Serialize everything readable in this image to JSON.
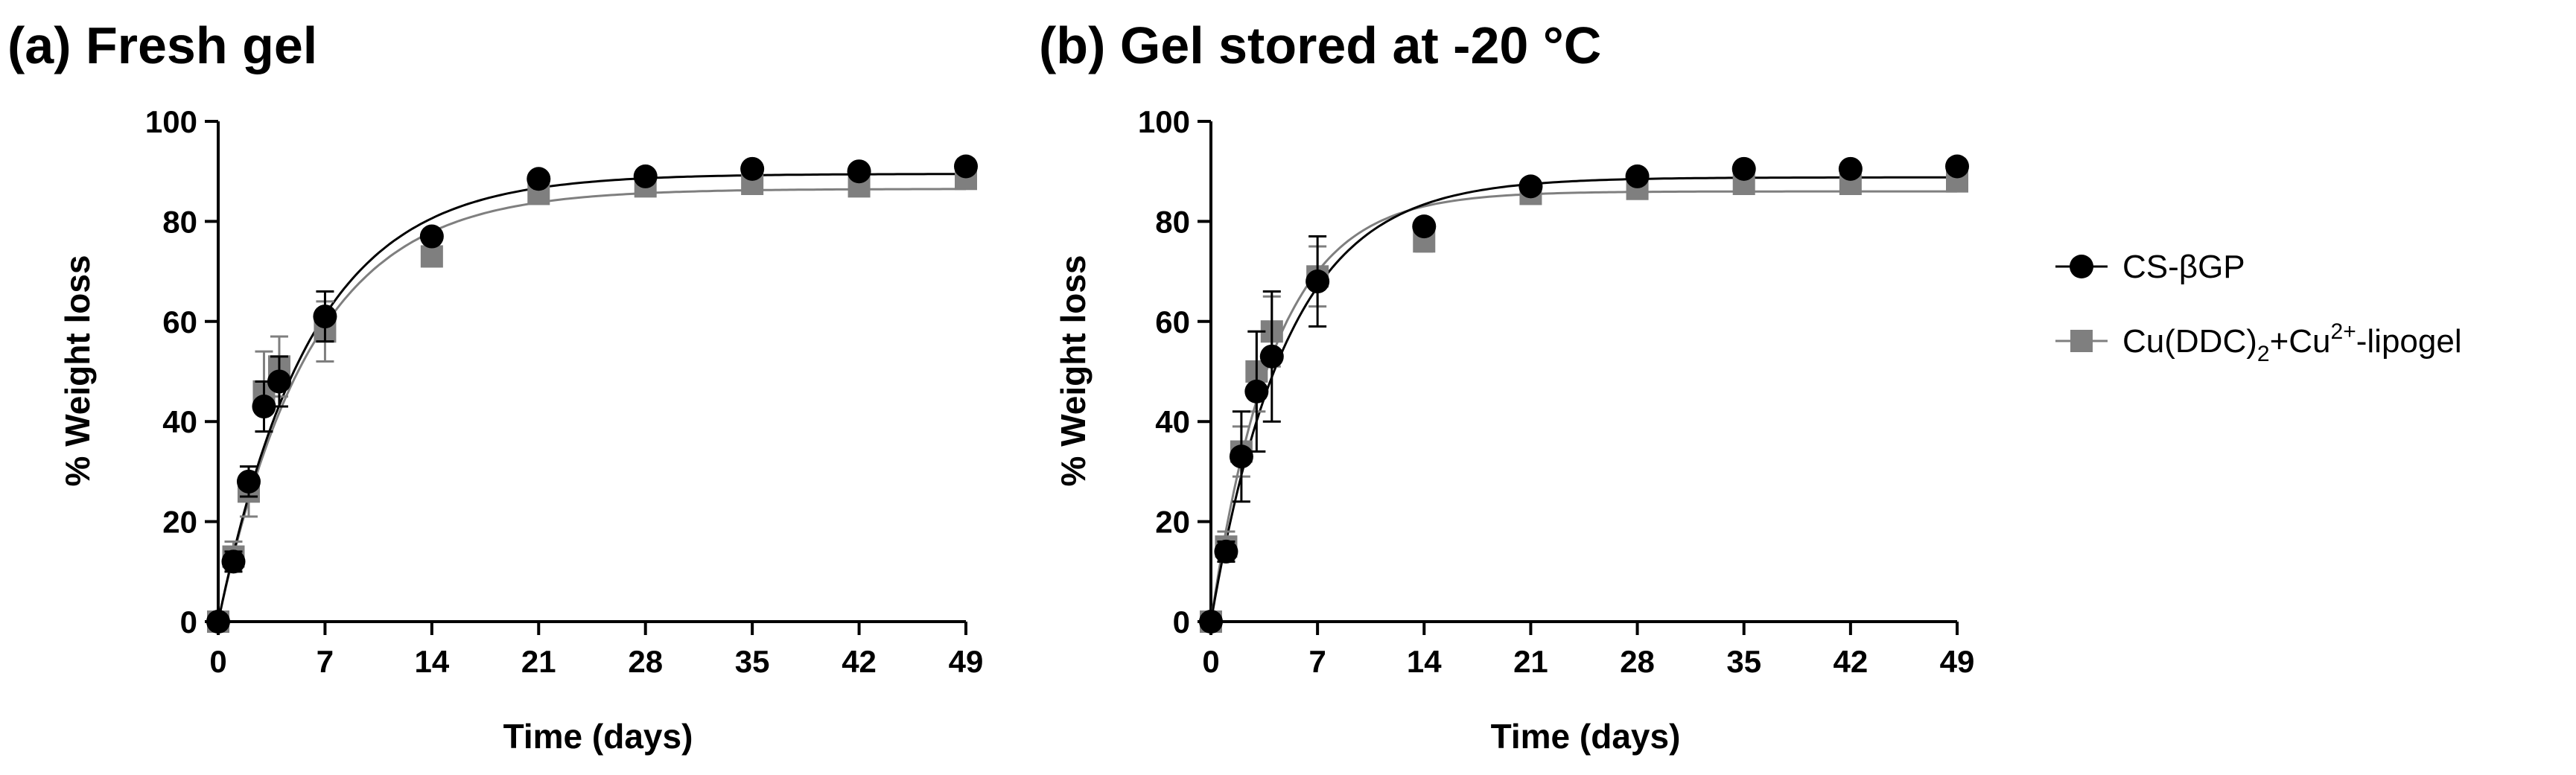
{
  "chart_data": [
    {
      "type": "scatter",
      "title": "(a) Fresh gel",
      "xlabel": "Time (days)",
      "ylabel": "% Weight loss",
      "xlim": [
        0,
        49
      ],
      "ylim": [
        0,
        100
      ],
      "xticks": [
        "0",
        "7",
        "14",
        "21",
        "28",
        "35",
        "42",
        "49"
      ],
      "yticks": [
        "0",
        "20",
        "40",
        "60",
        "80",
        "100"
      ],
      "series": [
        {
          "name": "CS-βGP",
          "color": "#000000",
          "marker": "circle",
          "x": [
            0,
            1,
            2,
            3,
            4,
            7,
            14,
            21,
            28,
            35,
            42,
            49
          ],
          "y": [
            0,
            12,
            28,
            43,
            48,
            61,
            77,
            88.5,
            89,
            90.5,
            90,
            91
          ],
          "err": [
            0,
            2,
            3,
            5,
            5,
            5,
            1,
            1,
            1,
            1,
            1,
            1
          ],
          "fit": {
            "plateau": 89.5,
            "k": 0.165
          }
        },
        {
          "name": "Cu(DDC)2+Cu2+-lipogel",
          "color": "#7f7f7f",
          "marker": "square",
          "x": [
            0,
            1,
            2,
            3,
            4,
            7,
            14,
            21,
            28,
            35,
            42,
            49
          ],
          "y": [
            0,
            13,
            26,
            46,
            51,
            58,
            73,
            85.5,
            87,
            87.5,
            87,
            88.5
          ],
          "err": [
            0,
            3,
            5,
            8,
            6,
            6,
            2,
            1,
            1,
            1,
            1,
            1
          ],
          "fit": {
            "plateau": 86.5,
            "k": 0.165
          }
        }
      ]
    },
    {
      "type": "scatter",
      "title": "(b) Gel stored at -20 °C",
      "xlabel": "Time (days)",
      "ylabel": "% Weight loss",
      "xlim": [
        0,
        49
      ],
      "ylim": [
        0,
        100
      ],
      "xticks": [
        "0",
        "7",
        "14",
        "21",
        "28",
        "35",
        "42",
        "49"
      ],
      "yticks": [
        "0",
        "20",
        "40",
        "60",
        "80",
        "100"
      ],
      "series": [
        {
          "name": "CS-βGP",
          "color": "#000000",
          "marker": "circle",
          "x": [
            0,
            1,
            2,
            3,
            4,
            7,
            14,
            21,
            28,
            35,
            42,
            49
          ],
          "y": [
            0,
            14,
            33,
            46,
            53,
            68,
            79,
            87,
            89,
            90.5,
            90.5,
            91
          ],
          "err": [
            0,
            2,
            9,
            12,
            13,
            9,
            1,
            1,
            1,
            1,
            1,
            1
          ],
          "fit": {
            "plateau": 88.8,
            "k": 0.2
          }
        },
        {
          "name": "Cu(DDC)2+Cu2+-lipogel",
          "color": "#7f7f7f",
          "marker": "square",
          "x": [
            0,
            1,
            2,
            3,
            4,
            7,
            14,
            21,
            28,
            35,
            42,
            49
          ],
          "y": [
            0,
            15,
            34,
            50,
            58,
            69,
            76,
            85.5,
            86.5,
            87.5,
            87.5,
            88
          ],
          "err": [
            0,
            3,
            5,
            8,
            7,
            6,
            2,
            1,
            1,
            1,
            1,
            1
          ],
          "fit": {
            "plateau": 86,
            "k": 0.24
          }
        }
      ]
    }
  ],
  "legend": {
    "position": "right",
    "items": [
      {
        "label": "CS-βGP",
        "color": "#000000",
        "marker": "circle"
      },
      {
        "label": "Cu(DDC)2+Cu2+-lipogel",
        "base": "Cu(DDC)",
        "sub": "2",
        "mid": "+Cu",
        "sup": "2+",
        "tail": "-lipogel",
        "color": "#7f7f7f",
        "marker": "square"
      }
    ]
  }
}
